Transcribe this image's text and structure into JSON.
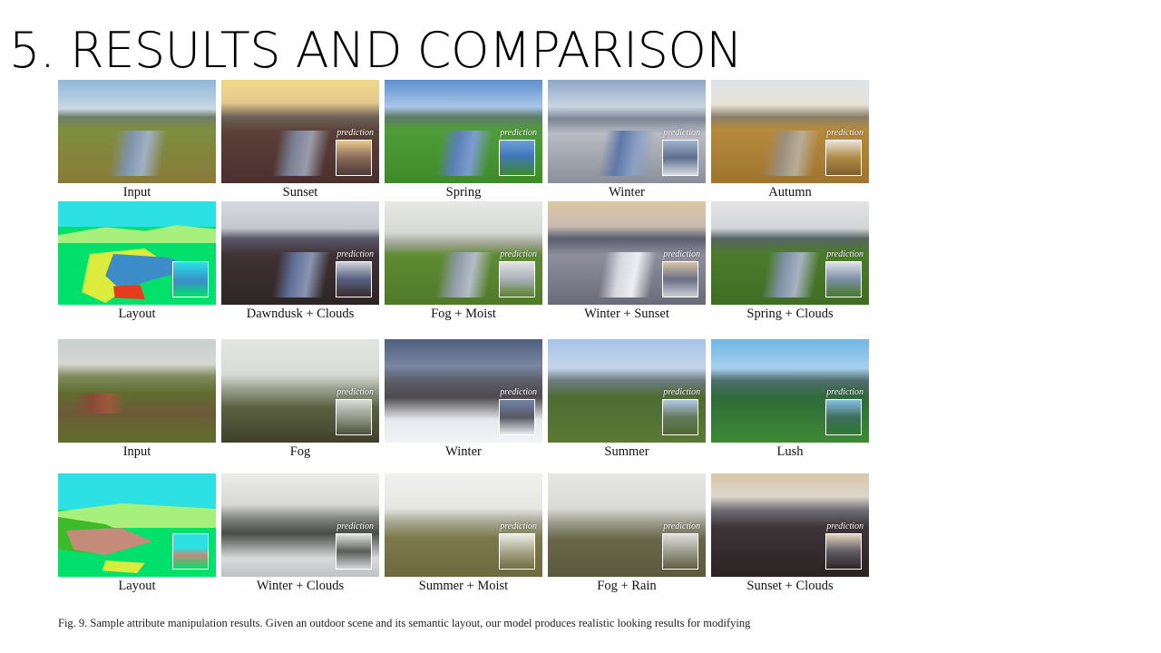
{
  "slide": {
    "title": "5. RESULTS AND COMPARISON"
  },
  "figure": {
    "inset_label": "prediction",
    "panels": [
      {
        "caption": "Input"
      },
      {
        "caption": "Sunset"
      },
      {
        "caption": "Spring"
      },
      {
        "caption": "Winter"
      },
      {
        "caption": "Autumn"
      },
      {
        "caption": "Layout"
      },
      {
        "caption": "Dawndusk + Clouds"
      },
      {
        "caption": "Fog + Moist"
      },
      {
        "caption": "Winter + Sunset"
      },
      {
        "caption": "Spring + Clouds"
      },
      {
        "caption": "Input"
      },
      {
        "caption": "Fog"
      },
      {
        "caption": "Winter"
      },
      {
        "caption": "Summer"
      },
      {
        "caption": "Lush"
      },
      {
        "caption": "Layout"
      },
      {
        "caption": "Winter + Clouds"
      },
      {
        "caption": "Summer + Moist"
      },
      {
        "caption": "Fog + Rain"
      },
      {
        "caption": "Sunset + Clouds"
      }
    ],
    "caption": "Fig. 9.  Sample attribute manipulation results. Given an outdoor scene and its semantic layout, our model produces realistic looking results for modifying"
  }
}
